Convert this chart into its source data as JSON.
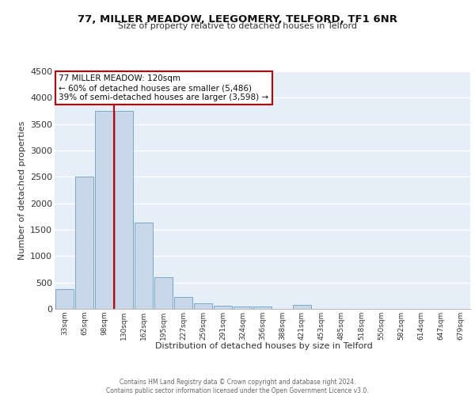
{
  "title1": "77, MILLER MEADOW, LEEGOMERY, TELFORD, TF1 6NR",
  "title2": "Size of property relative to detached houses in Telford",
  "xlabel": "Distribution of detached houses by size in Telford",
  "ylabel": "Number of detached properties",
  "bar_color": "#c8d8ea",
  "bar_edge_color": "#7aaac8",
  "background_color": "#e6eef8",
  "categories": [
    "33sqm",
    "65sqm",
    "98sqm",
    "130sqm",
    "162sqm",
    "195sqm",
    "227sqm",
    "259sqm",
    "291sqm",
    "324sqm",
    "356sqm",
    "388sqm",
    "421sqm",
    "453sqm",
    "485sqm",
    "518sqm",
    "550sqm",
    "582sqm",
    "614sqm",
    "647sqm",
    "679sqm"
  ],
  "values": [
    380,
    2500,
    3750,
    3750,
    1640,
    600,
    230,
    100,
    55,
    40,
    40,
    0,
    70,
    0,
    0,
    0,
    0,
    0,
    0,
    0,
    0
  ],
  "vline_color": "#cc0000",
  "annotation_title": "77 MILLER MEADOW: 120sqm",
  "annotation_line1": "← 60% of detached houses are smaller (5,486)",
  "annotation_line2": "39% of semi-detached houses are larger (3,598) →",
  "ylim": [
    0,
    4500
  ],
  "yticks": [
    0,
    500,
    1000,
    1500,
    2000,
    2500,
    3000,
    3500,
    4000,
    4500
  ],
  "footer1": "Contains HM Land Registry data © Crown copyright and database right 2024.",
  "footer2": "Contains public sector information licensed under the Open Government Licence v3.0."
}
